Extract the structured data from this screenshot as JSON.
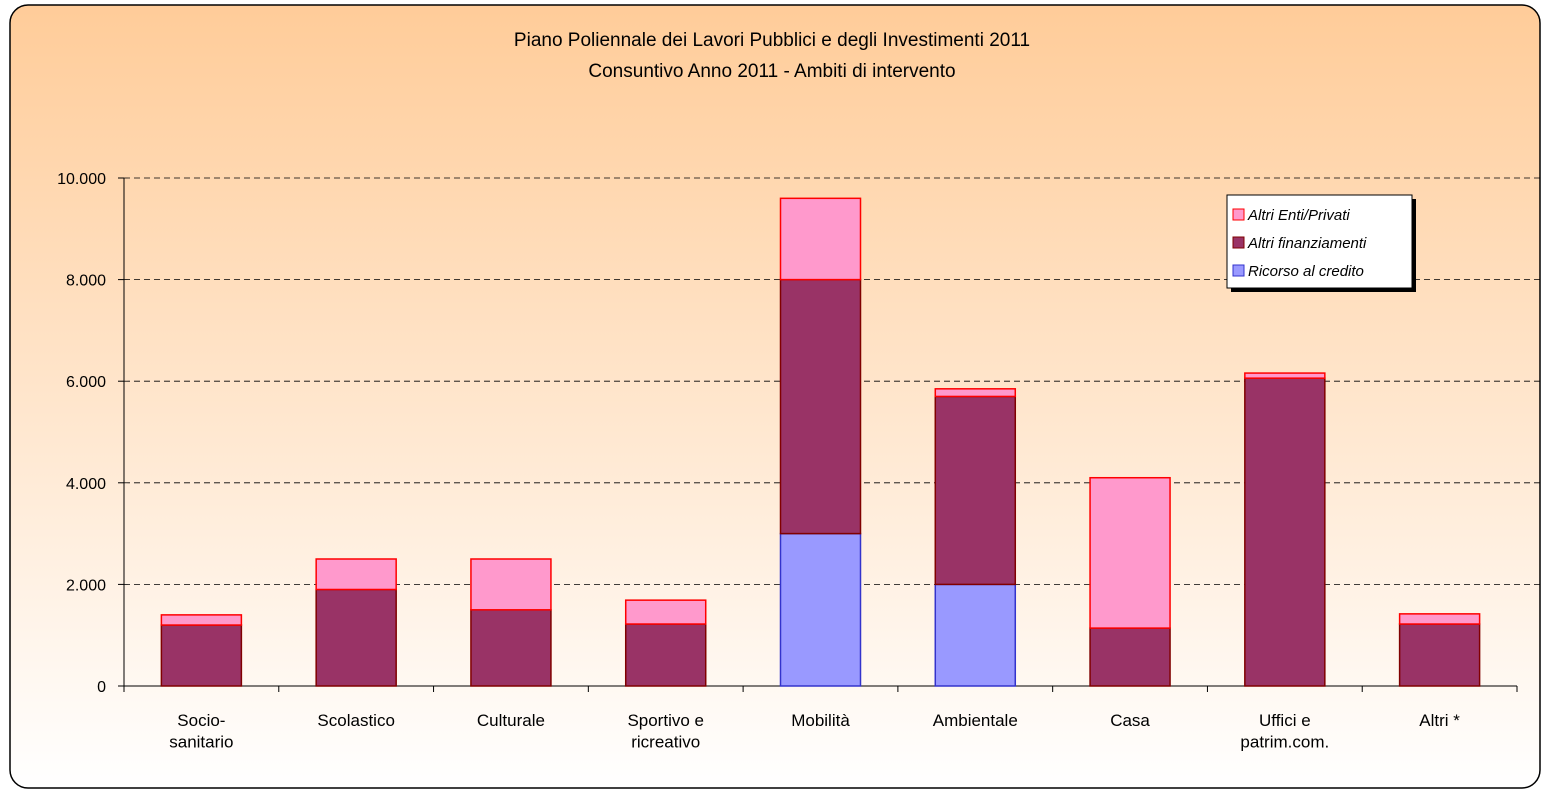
{
  "chart_data": {
    "type": "stacked_bar",
    "title": "Piano Poliennale dei Lavori Pubblici e degli Investimenti 2011",
    "subtitle": "Consuntivo Anno 2011 -  Ambiti di intervento",
    "categories": [
      "Socio-\nsanitario",
      "Scolastico",
      "Culturale",
      "Sportivo e\nricreativo",
      "Mobilità",
      "Ambientale",
      "Casa",
      "Uffici e\npatrim.com.",
      "Altri *"
    ],
    "series": [
      {
        "name": "Ricorso al credito",
        "color": "#9999ff",
        "stroke": "#3333cc",
        "values": [
          0,
          0,
          0,
          0,
          3000,
          2000,
          0,
          0,
          0
        ]
      },
      {
        "name": "Altri finanziamenti",
        "color": "#993366",
        "stroke": "#800000",
        "values": [
          1200,
          1900,
          1500,
          1220,
          5000,
          3700,
          1140,
          6060,
          1220
        ]
      },
      {
        "name": "Altri Enti/Privati",
        "color": "#ff99cc",
        "stroke": "#ff0000",
        "values": [
          200,
          600,
          1000,
          470,
          1600,
          150,
          2960,
          100,
          200
        ]
      }
    ],
    "ylim": [
      0,
      10000
    ],
    "yticks": [
      0,
      {
        "value": 2000,
        "label": "2.000"
      },
      {
        "value": 4000,
        "label": "4.000"
      },
      {
        "value": 6000,
        "label": "6.000"
      },
      {
        "value": 8000,
        "label": "8.000"
      },
      {
        "value": 10000,
        "label": "10.000"
      }
    ],
    "grid": true,
    "legend": "upper right"
  }
}
